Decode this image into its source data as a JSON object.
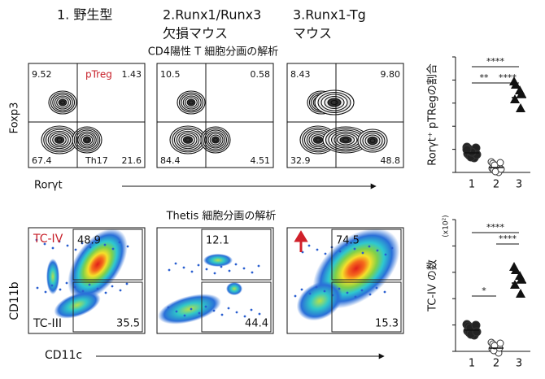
{
  "header": {
    "columns": [
      {
        "lines": [
          "1. 野生型"
        ]
      },
      {
        "lines": [
          "2.Runx1/Runx3",
          "欠損マウス"
        ]
      },
      {
        "lines": [
          "3.Runx1-Tg",
          "マウス"
        ]
      }
    ]
  },
  "cd4_section": {
    "title": "CD4陽性 T 細胞分画の解析",
    "y_axis": "Foxp3",
    "x_axis": "Rorγt",
    "labels": {
      "treg": "pTreg",
      "th17": "Th17"
    },
    "panels": [
      {
        "top_left": "9.52",
        "top_right": "1.43",
        "bottom_left": "67.4",
        "bottom_right": "21.6"
      },
      {
        "top_left": "10.5",
        "top_right": "0.58",
        "bottom_left": "84.4",
        "bottom_right": "4.51"
      },
      {
        "top_left": "8.43",
        "top_right": "9.80",
        "bottom_left": "32.9",
        "bottom_right": "48.8"
      }
    ]
  },
  "thetis_section": {
    "title": "Thetis 細胞分画の解析",
    "y_axis": "CD11b",
    "x_axis": "CD11c",
    "labels": {
      "tc4": "TC-IV",
      "tc3": "TC-III"
    },
    "panels": [
      {
        "upper": "48.9",
        "lower": "35.5"
      },
      {
        "upper": "12.1",
        "lower": "44.4"
      },
      {
        "upper": "74.5",
        "lower": "15.3"
      }
    ]
  },
  "summary_charts": [
    {
      "y_label": "Rorγt⁺ pTRegの割合",
      "x_labels": [
        "1",
        "2",
        "3"
      ],
      "significance": [
        "****",
        "**",
        "****"
      ]
    },
    {
      "y_label": "TC-IV の数",
      "unit": "(x10²)",
      "x_labels": [
        "1",
        "2",
        "3"
      ],
      "significance": [
        "****",
        "****",
        "*"
      ]
    }
  ]
}
